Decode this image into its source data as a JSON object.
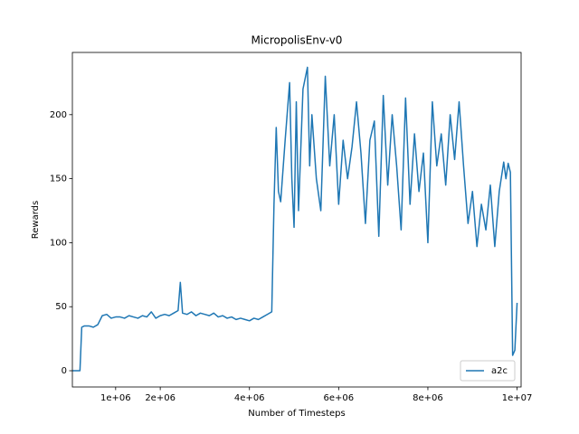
{
  "chart_data": {
    "type": "line",
    "title": "MicropolisEnv-v0",
    "x_label": "Number of Timesteps",
    "y_label": "Rewards",
    "x": [
      30000,
      200000,
      240000,
      300000,
      400000,
      500000,
      600000,
      700000,
      800000,
      900000,
      1000000,
      1100000,
      1200000,
      1300000,
      1400000,
      1500000,
      1600000,
      1700000,
      1800000,
      1900000,
      2000000,
      2100000,
      2200000,
      2300000,
      2400000,
      2450000,
      2500000,
      2600000,
      2700000,
      2800000,
      2900000,
      3000000,
      3100000,
      3200000,
      3300000,
      3400000,
      3500000,
      3600000,
      3700000,
      3800000,
      3900000,
      4000000,
      4100000,
      4200000,
      4300000,
      4400000,
      4500000,
      4550000,
      4600000,
      4650000,
      4700000,
      4800000,
      4900000,
      4950000,
      5000000,
      5050000,
      5100000,
      5200000,
      5300000,
      5350000,
      5400000,
      5500000,
      5600000,
      5700000,
      5800000,
      5900000,
      6000000,
      6100000,
      6200000,
      6300000,
      6400000,
      6500000,
      6600000,
      6700000,
      6800000,
      6900000,
      7000000,
      7100000,
      7200000,
      7300000,
      7400000,
      7500000,
      7600000,
      7700000,
      7800000,
      7900000,
      8000000,
      8100000,
      8200000,
      8300000,
      8400000,
      8500000,
      8600000,
      8700000,
      8800000,
      8900000,
      9000000,
      9100000,
      9200000,
      9300000,
      9400000,
      9500000,
      9600000,
      9700000,
      9750000,
      9800000,
      9850000,
      9900000,
      9950000,
      10000000
    ],
    "series": [
      {
        "name": "a2c",
        "color": "#1f77b4",
        "values": [
          0,
          0,
          34,
          35,
          35,
          34,
          36,
          43,
          44,
          41,
          42,
          42,
          41,
          43,
          42,
          41,
          43,
          42,
          46,
          41,
          43,
          44,
          43,
          45,
          47,
          69,
          45,
          44,
          46,
          43,
          45,
          44,
          43,
          45,
          42,
          43,
          41,
          42,
          40,
          41,
          40,
          39,
          41,
          40,
          42,
          44,
          46,
          130,
          190,
          140,
          132,
          180,
          225,
          150,
          112,
          210,
          125,
          220,
          237,
          160,
          200,
          150,
          125,
          230,
          160,
          200,
          130,
          180,
          150,
          175,
          210,
          170,
          115,
          180,
          195,
          105,
          215,
          145,
          200,
          160,
          110,
          213,
          130,
          185,
          140,
          170,
          100,
          210,
          160,
          185,
          145,
          200,
          165,
          210,
          160,
          115,
          140,
          97,
          130,
          110,
          145,
          97,
          140,
          163,
          150,
          162,
          155,
          12,
          16,
          53
        ]
      }
    ],
    "xlim": [
      30000,
      10090000
    ],
    "ylim": [
      -12.7,
      248.6
    ],
    "xticks": [
      {
        "value": 1000000,
        "label": "1e+06"
      },
      {
        "value": 2000000,
        "label": "2e+06"
      },
      {
        "value": 4000000,
        "label": "4e+06"
      },
      {
        "value": 6000000,
        "label": "6e+06"
      },
      {
        "value": 8000000,
        "label": "8e+06"
      },
      {
        "value": 10000000,
        "label": "1e+07"
      }
    ],
    "yticks": [
      0,
      50,
      100,
      150,
      200
    ],
    "grid": false,
    "legend": "lower right"
  }
}
